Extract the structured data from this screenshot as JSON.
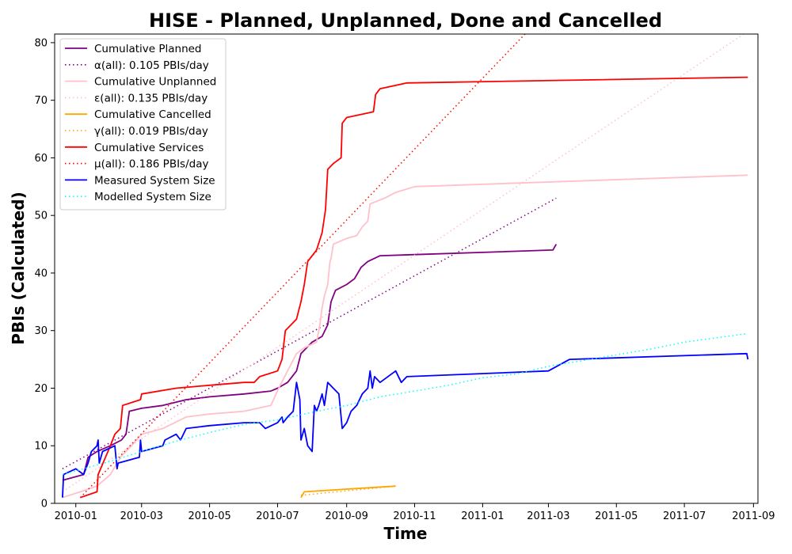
{
  "chart_data": {
    "type": "line",
    "title": "HISE - Planned, Unplanned, Done  and Cancelled",
    "xlabel": "Time",
    "ylabel": "PBIs (Calculated)",
    "xlim": [
      "2009-12-13",
      "2011-09-05"
    ],
    "ylim": [
      0,
      81.5
    ],
    "x_ticks": [
      "2010-01-01",
      "2010-03-01",
      "2010-05-01",
      "2010-07-01",
      "2010-09-01",
      "2010-11-01",
      "2011-01-01",
      "2011-03-01",
      "2011-05-01",
      "2011-07-01",
      "2011-09-01"
    ],
    "x_tick_labels": [
      "2010-01",
      "2010-03",
      "2010-05",
      "2010-07",
      "2010-09",
      "2010-11",
      "2011-01",
      "2011-03",
      "2011-05",
      "2011-07",
      "2011-09"
    ],
    "y_ticks": [
      0,
      10,
      20,
      30,
      40,
      50,
      60,
      70,
      80
    ],
    "legend_position": "upper left",
    "grid": false,
    "series": [
      {
        "name": "Cumulative Planned",
        "color": "#800080",
        "style": "solid",
        "points": [
          [
            "2009-12-20",
            4
          ],
          [
            "2010-01-08",
            5
          ],
          [
            "2010-01-12",
            8
          ],
          [
            "2010-01-20",
            9
          ],
          [
            "2010-02-01",
            10
          ],
          [
            "2010-02-11",
            11
          ],
          [
            "2010-02-15",
            12
          ],
          [
            "2010-02-18",
            16
          ],
          [
            "2010-03-01",
            16.5
          ],
          [
            "2010-03-20",
            17
          ],
          [
            "2010-04-10",
            18
          ],
          [
            "2010-05-01",
            18.5
          ],
          [
            "2010-06-01",
            19
          ],
          [
            "2010-06-25",
            19.5
          ],
          [
            "2010-07-01",
            20
          ],
          [
            "2010-07-10",
            21
          ],
          [
            "2010-07-18",
            23
          ],
          [
            "2010-07-22",
            26
          ],
          [
            "2010-08-01",
            28
          ],
          [
            "2010-08-10",
            29
          ],
          [
            "2010-08-15",
            31
          ],
          [
            "2010-08-18",
            35
          ],
          [
            "2010-08-22",
            37
          ],
          [
            "2010-09-01",
            38
          ],
          [
            "2010-09-08",
            39
          ],
          [
            "2010-09-14",
            41
          ],
          [
            "2010-09-20",
            42
          ],
          [
            "2010-10-01",
            43
          ],
          [
            "2010-11-01",
            43.2
          ],
          [
            "2011-03-05",
            44
          ],
          [
            "2011-03-08",
            45
          ]
        ]
      },
      {
        "name": "α(all): 0.105 PBIs/day",
        "color": "#800080",
        "style": "dotted",
        "points": [
          [
            "2009-12-20",
            6
          ],
          [
            "2011-03-08",
            53
          ]
        ]
      },
      {
        "name": "Cumulative Unplanned",
        "color": "#ffc0cb",
        "style": "solid",
        "points": [
          [
            "2009-12-20",
            1
          ],
          [
            "2010-01-05",
            2
          ],
          [
            "2010-01-20",
            3
          ],
          [
            "2010-02-01",
            5
          ],
          [
            "2010-02-10",
            8
          ],
          [
            "2010-02-20",
            10
          ],
          [
            "2010-03-01",
            12
          ],
          [
            "2010-03-20",
            13
          ],
          [
            "2010-04-10",
            15
          ],
          [
            "2010-05-01",
            15.5
          ],
          [
            "2010-06-01",
            16
          ],
          [
            "2010-06-25",
            17
          ],
          [
            "2010-07-02",
            20
          ],
          [
            "2010-07-10",
            23
          ],
          [
            "2010-07-18",
            26
          ],
          [
            "2010-07-25",
            27
          ],
          [
            "2010-08-05",
            28
          ],
          [
            "2010-08-08",
            31
          ],
          [
            "2010-08-10",
            34
          ],
          [
            "2010-08-12",
            36
          ],
          [
            "2010-08-15",
            38
          ],
          [
            "2010-08-17",
            42
          ],
          [
            "2010-08-18",
            42.5
          ],
          [
            "2010-08-20",
            45
          ],
          [
            "2010-09-01",
            46
          ],
          [
            "2010-09-10",
            46.5
          ],
          [
            "2010-09-15",
            48
          ],
          [
            "2010-09-20",
            49
          ],
          [
            "2010-09-22",
            52
          ],
          [
            "2010-10-05",
            53
          ],
          [
            "2010-10-15",
            54
          ],
          [
            "2010-11-01",
            55
          ],
          [
            "2011-08-27",
            57
          ]
        ]
      },
      {
        "name": "ε(all): 0.135 PBIs/day",
        "color": "#ffc0cb",
        "style": "dotted",
        "points": [
          [
            "2009-12-20",
            2
          ],
          [
            "2011-08-27",
            82
          ]
        ]
      },
      {
        "name": "Cumulative Cancelled",
        "color": "#ffa500",
        "style": "solid",
        "points": [
          [
            "2010-07-22",
            1
          ],
          [
            "2010-07-25",
            2
          ],
          [
            "2010-10-15",
            3
          ]
        ]
      },
      {
        "name": "γ(all): 0.019 PBIs/day",
        "color": "#ffa500",
        "style": "dotted",
        "points": [
          [
            "2010-07-22",
            1.4
          ],
          [
            "2010-10-15",
            3
          ]
        ]
      },
      {
        "name": "Cumulative Services",
        "color": "#ff0000",
        "style": "solid",
        "points": [
          [
            "2010-01-05",
            1
          ],
          [
            "2010-01-20",
            2
          ],
          [
            "2010-01-21",
            5
          ],
          [
            "2010-02-01",
            10
          ],
          [
            "2010-02-05",
            12
          ],
          [
            "2010-02-10",
            13
          ],
          [
            "2010-02-12",
            17
          ],
          [
            "2010-02-28",
            18
          ],
          [
            "2010-03-01",
            19
          ],
          [
            "2010-04-01",
            20
          ],
          [
            "2010-05-01",
            20.5
          ],
          [
            "2010-06-01",
            21
          ],
          [
            "2010-06-10",
            21
          ],
          [
            "2010-06-15",
            22
          ],
          [
            "2010-07-01",
            23
          ],
          [
            "2010-07-05",
            25
          ],
          [
            "2010-07-08",
            30
          ],
          [
            "2010-07-18",
            32
          ],
          [
            "2010-07-22",
            35
          ],
          [
            "2010-07-25",
            38
          ],
          [
            "2010-07-28",
            42
          ],
          [
            "2010-08-05",
            44
          ],
          [
            "2010-08-10",
            47
          ],
          [
            "2010-08-13",
            51
          ],
          [
            "2010-08-15",
            58
          ],
          [
            "2010-08-20",
            59
          ],
          [
            "2010-08-27",
            60
          ],
          [
            "2010-08-28",
            66
          ],
          [
            "2010-09-01",
            67
          ],
          [
            "2010-09-25",
            68
          ],
          [
            "2010-09-27",
            71
          ],
          [
            "2010-10-01",
            72
          ],
          [
            "2010-10-25",
            73
          ],
          [
            "2011-08-27",
            74
          ]
        ]
      },
      {
        "name": "μ(all): 0.186 PBIs/day",
        "color": "#ff0000",
        "style": "dotted",
        "points": [
          [
            "2010-01-05",
            1
          ],
          [
            "2011-02-08",
            81.5
          ]
        ]
      },
      {
        "name": "Measured System Size",
        "color": "#0000ff",
        "style": "solid",
        "points": [
          [
            "2009-12-20",
            1
          ],
          [
            "2009-12-21",
            5
          ],
          [
            "2010-01-01",
            6
          ],
          [
            "2010-01-08",
            5
          ],
          [
            "2010-01-12",
            7
          ],
          [
            "2010-01-15",
            9
          ],
          [
            "2010-01-20",
            10
          ],
          [
            "2010-01-21",
            11
          ],
          [
            "2010-01-22",
            7
          ],
          [
            "2010-01-25",
            9
          ],
          [
            "2010-02-05",
            10
          ],
          [
            "2010-02-07",
            6
          ],
          [
            "2010-02-08",
            7
          ],
          [
            "2010-02-27",
            8
          ],
          [
            "2010-02-28",
            11
          ],
          [
            "2010-03-01",
            9
          ],
          [
            "2010-03-20",
            10
          ],
          [
            "2010-03-22",
            11
          ],
          [
            "2010-04-01",
            12
          ],
          [
            "2010-04-05",
            11
          ],
          [
            "2010-04-10",
            13
          ],
          [
            "2010-05-01",
            13.5
          ],
          [
            "2010-06-01",
            14
          ],
          [
            "2010-06-15",
            14
          ],
          [
            "2010-06-20",
            13
          ],
          [
            "2010-07-01",
            14
          ],
          [
            "2010-07-05",
            15
          ],
          [
            "2010-07-06",
            14
          ],
          [
            "2010-07-10",
            15
          ],
          [
            "2010-07-15",
            16
          ],
          [
            "2010-07-18",
            21
          ],
          [
            "2010-07-21",
            18
          ],
          [
            "2010-07-22",
            11
          ],
          [
            "2010-07-25",
            13
          ],
          [
            "2010-07-28",
            10
          ],
          [
            "2010-08-01",
            9
          ],
          [
            "2010-08-03",
            17
          ],
          [
            "2010-08-05",
            16
          ],
          [
            "2010-08-07",
            17
          ],
          [
            "2010-08-10",
            19
          ],
          [
            "2010-08-12",
            17
          ],
          [
            "2010-08-15",
            21
          ],
          [
            "2010-08-20",
            20
          ],
          [
            "2010-08-25",
            19
          ],
          [
            "2010-08-28",
            13
          ],
          [
            "2010-09-01",
            14
          ],
          [
            "2010-09-05",
            16
          ],
          [
            "2010-09-10",
            17
          ],
          [
            "2010-09-15",
            19
          ],
          [
            "2010-09-20",
            20
          ],
          [
            "2010-09-22",
            23
          ],
          [
            "2010-09-24",
            20
          ],
          [
            "2010-09-26",
            22
          ],
          [
            "2010-10-01",
            21
          ],
          [
            "2010-10-15",
            23
          ],
          [
            "2010-10-20",
            21
          ],
          [
            "2010-10-25",
            22
          ],
          [
            "2011-03-01",
            23
          ],
          [
            "2011-03-20",
            25
          ],
          [
            "2011-08-26",
            26
          ],
          [
            "2011-08-27",
            25
          ]
        ]
      },
      {
        "name": "Modelled System Size",
        "color": "#00ffff",
        "style": "dotted",
        "points": [
          [
            "2009-12-20",
            5
          ],
          [
            "2010-02-01",
            7.3
          ],
          [
            "2010-03-01",
            9
          ],
          [
            "2010-04-01",
            10.8
          ],
          [
            "2010-05-01",
            12.3
          ],
          [
            "2010-06-01",
            13.7
          ],
          [
            "2010-07-01",
            14.5
          ],
          [
            "2010-08-01",
            15.8
          ],
          [
            "2010-09-01",
            17
          ],
          [
            "2010-10-01",
            18.5
          ],
          [
            "2010-11-01",
            19.5
          ],
          [
            "2010-12-01",
            20.5
          ],
          [
            "2011-01-01",
            21.8
          ],
          [
            "2011-02-01",
            22.5
          ],
          [
            "2011-03-01",
            23.8
          ],
          [
            "2011-04-01",
            24.8
          ],
          [
            "2011-05-01",
            25.8
          ],
          [
            "2011-06-01",
            26.8
          ],
          [
            "2011-07-01",
            28
          ],
          [
            "2011-08-01",
            28.8
          ],
          [
            "2011-08-27",
            29.5
          ]
        ]
      }
    ]
  }
}
